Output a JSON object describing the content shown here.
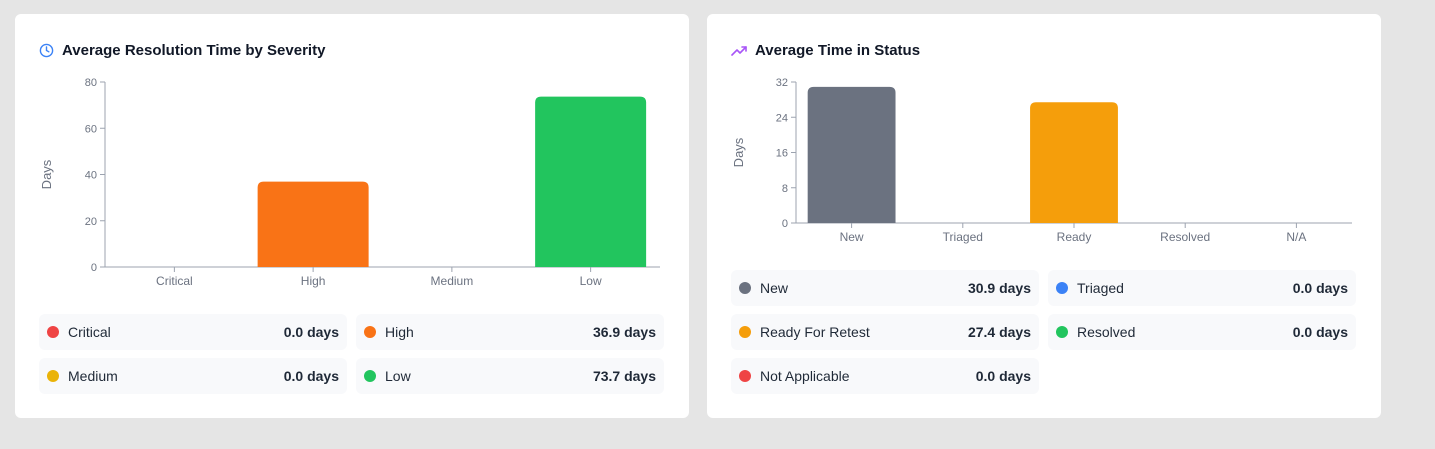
{
  "severity_card": {
    "title": "Average Resolution Time by Severity",
    "icon": "clock-icon",
    "legend": [
      {
        "label": "Critical",
        "value": "0.0 days",
        "color": "#ef4444"
      },
      {
        "label": "High",
        "value": "36.9 days",
        "color": "#f97316"
      },
      {
        "label": "Medium",
        "value": "0.0 days",
        "color": "#eab308"
      },
      {
        "label": "Low",
        "value": "73.7 days",
        "color": "#22c55e"
      }
    ]
  },
  "status_card": {
    "title": "Average Time in Status",
    "icon": "trending-up-icon",
    "legend": [
      {
        "label": "New",
        "value": "30.9 days",
        "color": "#6b7280"
      },
      {
        "label": "Triaged",
        "value": "0.0 days",
        "color": "#3b82f6"
      },
      {
        "label": "Ready For Retest",
        "value": "27.4 days",
        "color": "#f59e0b"
      },
      {
        "label": "Resolved",
        "value": "0.0 days",
        "color": "#22c55e"
      },
      {
        "label": "Not Applicable",
        "value": "0.0 days",
        "color": "#ef4444"
      }
    ]
  },
  "chart_data": [
    {
      "type": "bar",
      "title": "Average Resolution Time by Severity",
      "categories": [
        "Critical",
        "High",
        "Medium",
        "Low"
      ],
      "values": [
        0.0,
        36.9,
        0.0,
        73.7
      ],
      "colors": [
        "#ef4444",
        "#f97316",
        "#eab308",
        "#22c55e"
      ],
      "ylabel": "Days",
      "xlabel": "",
      "ylim": [
        0,
        80
      ],
      "yticks": [
        0,
        20,
        40,
        60,
        80
      ],
      "grid": false
    },
    {
      "type": "bar",
      "title": "Average Time in Status",
      "categories": [
        "New",
        "Triaged",
        "Ready",
        "Resolved",
        "N/A"
      ],
      "values": [
        30.9,
        0.0,
        27.4,
        0.0,
        0.0
      ],
      "colors": [
        "#6b7280",
        "#3b82f6",
        "#f59e0b",
        "#22c55e",
        "#ef4444"
      ],
      "ylabel": "Days",
      "xlabel": "",
      "ylim": [
        0,
        32
      ],
      "yticks": [
        0,
        8,
        16,
        24,
        32
      ],
      "grid": false
    }
  ]
}
